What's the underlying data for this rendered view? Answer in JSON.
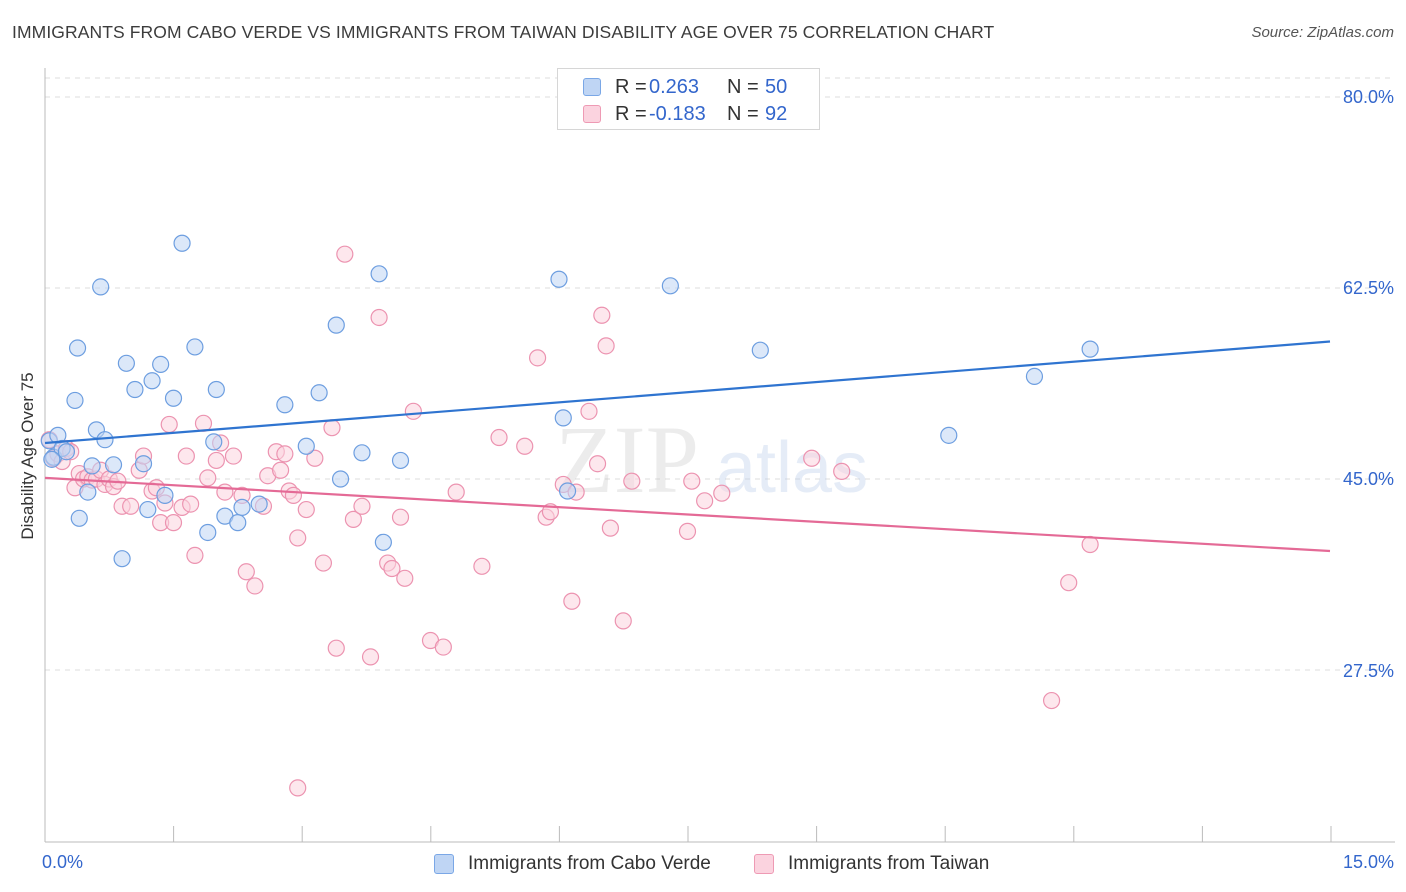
{
  "title": "IMMIGRANTS FROM CABO VERDE VS IMMIGRANTS FROM TAIWAN DISABILITY AGE OVER 75 CORRELATION CHART",
  "source": "Source: ZipAtlas.com",
  "watermark": {
    "zip": "ZIP",
    "atlas": "atlas"
  },
  "legend": {
    "rows": [
      {
        "r_label": "R =",
        "r_value": "0.263",
        "n_label": "N =",
        "n_value": "50",
        "color": "#7aa7e6",
        "fill": "#b9d1f3"
      },
      {
        "r_label": "R =",
        "r_value": "-0.183",
        "n_label": "N =",
        "n_value": "92",
        "color": "#ee9ab4",
        "fill": "#f9cad9"
      }
    ]
  },
  "bottom_legend": [
    {
      "label": "Immigrants from Cabo Verde"
    },
    {
      "label": "Immigrants from Taiwan"
    }
  ],
  "axis": {
    "ylabel": "Disability Age Over 75",
    "x_min_label": "0.0%",
    "x_max_label": "15.0%",
    "y_ticks": [
      "80.0%",
      "62.5%",
      "45.0%",
      "27.5%"
    ]
  },
  "colors": {
    "blue_line": "#2f74d0",
    "pink_line": "#e46a96",
    "blue_point_stroke": "#6d9ee0",
    "blue_point_fill": "#bfd5f4",
    "pink_point_stroke": "#ec93b0",
    "pink_point_fill": "#fbd3df",
    "tick_label": "#3366cc",
    "grid": "#dcdcdc"
  },
  "chart_data": {
    "type": "scatter",
    "title": "IMMIGRANTS FROM CABO VERDE VS IMMIGRANTS FROM TAIWAN DISABILITY AGE OVER 75 CORRELATION CHART",
    "xlabel": "",
    "ylabel": "Disability Age Over 75",
    "xlim": [
      0,
      15
    ],
    "ylim": [
      13,
      84
    ],
    "y_gridlines": [
      27.5,
      45.0,
      62.5,
      80.0
    ],
    "series": [
      {
        "name": "Immigrants from Cabo Verde",
        "R": 0.263,
        "N": 50,
        "trend": {
          "x": [
            0,
            15
          ],
          "y": [
            48.3,
            57.6
          ]
        },
        "points": [
          [
            0.05,
            48.5
          ],
          [
            0.1,
            47.0
          ],
          [
            0.15,
            49.0
          ],
          [
            0.2,
            47.8
          ],
          [
            0.25,
            47.5
          ],
          [
            0.35,
            52.2
          ],
          [
            0.4,
            41.4
          ],
          [
            0.38,
            57.0
          ],
          [
            0.5,
            43.8
          ],
          [
            0.6,
            49.5
          ],
          [
            0.65,
            62.6
          ],
          [
            0.7,
            48.6
          ],
          [
            0.8,
            46.3
          ],
          [
            0.9,
            37.7
          ],
          [
            0.95,
            55.6
          ],
          [
            1.05,
            53.2
          ],
          [
            1.15,
            46.4
          ],
          [
            1.2,
            42.2
          ],
          [
            1.25,
            54.0
          ],
          [
            1.35,
            55.5
          ],
          [
            1.4,
            43.5
          ],
          [
            1.5,
            52.4
          ],
          [
            1.6,
            66.6
          ],
          [
            1.75,
            57.1
          ],
          [
            1.9,
            40.1
          ],
          [
            1.97,
            48.4
          ],
          [
            2.0,
            53.2
          ],
          [
            2.1,
            41.6
          ],
          [
            2.25,
            41.0
          ],
          [
            2.3,
            42.4
          ],
          [
            2.5,
            42.7
          ],
          [
            2.8,
            51.8
          ],
          [
            3.05,
            48.0
          ],
          [
            3.2,
            52.9
          ],
          [
            3.4,
            59.1
          ],
          [
            3.45,
            45.0
          ],
          [
            3.7,
            47.4
          ],
          [
            3.9,
            63.8
          ],
          [
            3.95,
            39.2
          ],
          [
            4.15,
            46.7
          ],
          [
            6.0,
            63.3
          ],
          [
            6.05,
            50.6
          ],
          [
            6.1,
            43.9
          ],
          [
            7.3,
            62.7
          ],
          [
            8.35,
            56.8
          ],
          [
            10.55,
            49.0
          ],
          [
            11.55,
            54.4
          ],
          [
            12.2,
            56.9
          ],
          [
            0.08,
            46.8
          ],
          [
            0.55,
            46.2
          ]
        ]
      },
      {
        "name": "Immigrants from Taiwan",
        "R": -0.183,
        "N": 92,
        "trend": {
          "x": [
            0,
            15
          ],
          "y": [
            45.1,
            38.4
          ]
        },
        "points": [
          [
            0.05,
            48.6
          ],
          [
            0.1,
            46.9
          ],
          [
            0.15,
            47.3
          ],
          [
            0.2,
            46.6
          ],
          [
            0.25,
            47.8
          ],
          [
            0.3,
            47.5
          ],
          [
            0.35,
            44.2
          ],
          [
            0.4,
            45.5
          ],
          [
            0.45,
            45.0
          ],
          [
            0.5,
            45.2
          ],
          [
            0.55,
            44.9
          ],
          [
            0.6,
            45.0
          ],
          [
            0.65,
            45.8
          ],
          [
            0.7,
            44.5
          ],
          [
            0.75,
            45.0
          ],
          [
            0.8,
            44.3
          ],
          [
            0.85,
            44.8
          ],
          [
            0.9,
            42.5
          ],
          [
            1.0,
            42.5
          ],
          [
            1.1,
            45.8
          ],
          [
            1.15,
            47.1
          ],
          [
            1.25,
            43.9
          ],
          [
            1.3,
            44.2
          ],
          [
            1.35,
            41.0
          ],
          [
            1.4,
            42.8
          ],
          [
            1.45,
            50.0
          ],
          [
            1.5,
            41.0
          ],
          [
            1.6,
            42.4
          ],
          [
            1.65,
            47.1
          ],
          [
            1.7,
            42.7
          ],
          [
            1.75,
            38.0
          ],
          [
            1.85,
            50.1
          ],
          [
            1.9,
            45.1
          ],
          [
            2.0,
            46.7
          ],
          [
            2.05,
            48.3
          ],
          [
            2.1,
            43.8
          ],
          [
            2.2,
            47.1
          ],
          [
            2.3,
            43.5
          ],
          [
            2.35,
            36.5
          ],
          [
            2.45,
            35.2
          ],
          [
            2.55,
            42.5
          ],
          [
            2.6,
            45.3
          ],
          [
            2.7,
            47.5
          ],
          [
            2.75,
            45.8
          ],
          [
            2.8,
            47.3
          ],
          [
            2.85,
            43.9
          ],
          [
            2.9,
            43.5
          ],
          [
            2.95,
            39.6
          ],
          [
            3.05,
            42.2
          ],
          [
            3.15,
            46.9
          ],
          [
            3.25,
            37.3
          ],
          [
            3.35,
            49.7
          ],
          [
            3.4,
            29.5
          ],
          [
            3.5,
            65.6
          ],
          [
            3.6,
            41.3
          ],
          [
            3.7,
            42.5
          ],
          [
            3.8,
            28.7
          ],
          [
            3.9,
            59.8
          ],
          [
            4.0,
            37.3
          ],
          [
            4.05,
            36.8
          ],
          [
            4.15,
            41.5
          ],
          [
            4.2,
            35.9
          ],
          [
            4.3,
            51.2
          ],
          [
            4.5,
            30.2
          ],
          [
            4.65,
            29.6
          ],
          [
            4.8,
            43.8
          ],
          [
            5.1,
            37.0
          ],
          [
            5.3,
            48.8
          ],
          [
            5.6,
            48.0
          ],
          [
            5.75,
            56.1
          ],
          [
            5.85,
            41.5
          ],
          [
            5.9,
            42.0
          ],
          [
            6.05,
            44.5
          ],
          [
            6.15,
            33.8
          ],
          [
            6.2,
            43.8
          ],
          [
            6.35,
            51.2
          ],
          [
            6.45,
            46.4
          ],
          [
            6.5,
            60.0
          ],
          [
            6.55,
            57.2
          ],
          [
            6.6,
            40.5
          ],
          [
            6.75,
            32.0
          ],
          [
            7.5,
            40.2
          ],
          [
            7.55,
            44.8
          ],
          [
            7.7,
            43.0
          ],
          [
            7.9,
            43.7
          ],
          [
            8.95,
            46.9
          ],
          [
            9.3,
            45.7
          ],
          [
            11.75,
            24.7
          ],
          [
            11.95,
            35.5
          ],
          [
            12.2,
            39.0
          ],
          [
            2.95,
            16.7
          ],
          [
            6.85,
            44.8
          ]
        ]
      }
    ]
  }
}
